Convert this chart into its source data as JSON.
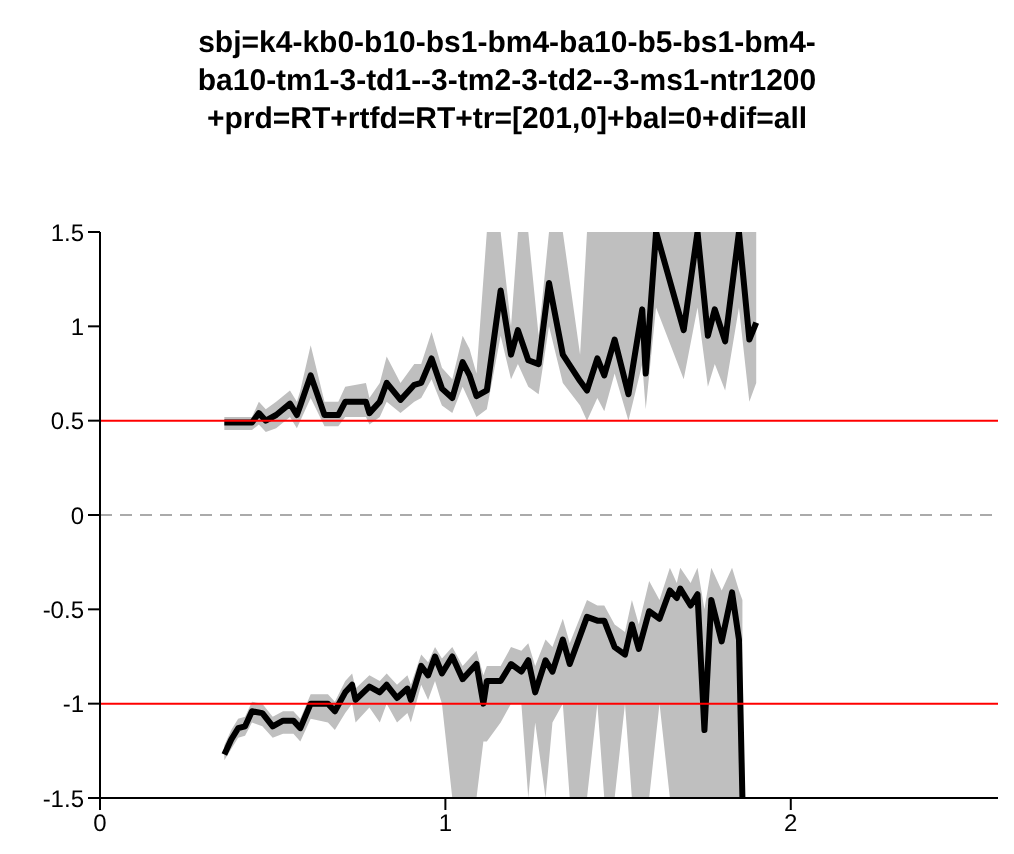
{
  "chart_data": {
    "type": "line",
    "title": "sbj=k4-kb0-b10-bs1-bm4-ba10-b5-bs1-bm4-ba10-tm1-3-td1--3-tm2-3-td2--3-ms1-ntr1200+prd=RT+rtfd=RT+tr=[201,0]+bal=0+dif=all",
    "xlim": [
      0,
      2.6
    ],
    "xticks": [
      0,
      1,
      2
    ],
    "ylim": [
      -1.5,
      1.5
    ],
    "yticks": [
      -1.5,
      -1,
      -0.5,
      0,
      0.5,
      1,
      1.5
    ],
    "grid": false,
    "line_style": "solid",
    "ref_lines": [
      {
        "axis": "y",
        "value": 0.5,
        "color": "#ff0000"
      },
      {
        "axis": "y",
        "value": 0,
        "color": "#aaaaaa",
        "line_style": "dashed"
      },
      {
        "axis": "y",
        "value": -1,
        "color": "#ff0000"
      }
    ],
    "series": [
      {
        "color": "#000000",
        "x": [
          0.36,
          0.44,
          0.46,
          0.48,
          0.51,
          0.55,
          0.57,
          0.58,
          0.61,
          0.65,
          0.69,
          0.71,
          0.77,
          0.78,
          0.81,
          0.83,
          0.87,
          0.91,
          0.93,
          0.96,
          0.99,
          1.02,
          1.05,
          1.07,
          1.09,
          1.12,
          1.16,
          1.19,
          1.21,
          1.24,
          1.27,
          1.3,
          1.34,
          1.39,
          1.41,
          1.44,
          1.46,
          1.49,
          1.53,
          1.57,
          1.58,
          1.61,
          1.69,
          1.73,
          1.76,
          1.78,
          1.81,
          1.85,
          1.88,
          1.9
        ],
        "values": [
          0.49,
          0.49,
          0.54,
          0.5,
          0.53,
          0.59,
          0.53,
          0.58,
          0.74,
          0.53,
          0.53,
          0.6,
          0.6,
          0.54,
          0.6,
          0.7,
          0.61,
          0.69,
          0.7,
          0.83,
          0.67,
          0.62,
          0.81,
          0.74,
          0.63,
          0.66,
          1.19,
          0.85,
          0.98,
          0.82,
          0.8,
          1.23,
          0.85,
          0.71,
          0.66,
          0.83,
          0.74,
          0.93,
          0.64,
          1.09,
          0.75,
          1.5,
          0.98,
          1.5,
          0.95,
          1.09,
          0.92,
          1.5,
          0.93,
          1.02
        ],
        "lower": [
          0.45,
          0.45,
          0.48,
          0.44,
          0.46,
          0.52,
          0.46,
          0.5,
          0.62,
          0.47,
          0.47,
          0.52,
          0.52,
          0.48,
          0.52,
          0.6,
          0.54,
          0.6,
          0.62,
          0.72,
          0.58,
          0.54,
          0.68,
          0.6,
          0.52,
          0.56,
          0.95,
          0.72,
          0.8,
          0.68,
          0.64,
          1.0,
          0.7,
          0.58,
          0.5,
          0.62,
          0.55,
          0.75,
          0.5,
          0.8,
          0.56,
          1.1,
          0.72,
          1.1,
          0.68,
          0.8,
          0.66,
          1.1,
          0.6,
          0.7
        ],
        "upper": [
          0.52,
          0.52,
          0.6,
          0.56,
          0.6,
          0.66,
          0.6,
          0.66,
          0.9,
          0.6,
          0.6,
          0.68,
          0.7,
          0.62,
          0.7,
          0.84,
          0.7,
          0.8,
          0.8,
          0.97,
          0.78,
          0.72,
          0.95,
          0.88,
          0.75,
          1.5,
          1.5,
          1.0,
          1.5,
          1.5,
          0.95,
          1.5,
          1.5,
          0.85,
          1.5,
          1.5,
          1.5,
          1.5,
          1.5,
          1.5,
          1.5,
          1.5,
          1.5,
          1.5,
          1.5,
          1.5,
          1.5,
          1.5,
          1.5,
          1.5
        ]
      },
      {
        "color": "#000000",
        "x": [
          0.36,
          0.38,
          0.4,
          0.42,
          0.44,
          0.47,
          0.5,
          0.53,
          0.56,
          0.58,
          0.61,
          0.66,
          0.68,
          0.71,
          0.73,
          0.74,
          0.78,
          0.81,
          0.83,
          0.86,
          0.89,
          0.9,
          0.93,
          0.95,
          0.97,
          0.99,
          1.02,
          1.05,
          1.09,
          1.11,
          1.12,
          1.16,
          1.19,
          1.22,
          1.24,
          1.26,
          1.29,
          1.31,
          1.34,
          1.36,
          1.41,
          1.44,
          1.46,
          1.49,
          1.52,
          1.54,
          1.56,
          1.59,
          1.62,
          1.65,
          1.67,
          1.68,
          1.71,
          1.73,
          1.75,
          1.77,
          1.8,
          1.83,
          1.85,
          1.86
        ],
        "values": [
          -1.27,
          -1.19,
          -1.13,
          -1.12,
          -1.04,
          -1.05,
          -1.12,
          -1.09,
          -1.09,
          -1.13,
          -1.0,
          -1.0,
          -1.04,
          -0.94,
          -0.9,
          -0.98,
          -0.91,
          -0.94,
          -0.9,
          -0.97,
          -0.92,
          -0.98,
          -0.8,
          -0.85,
          -0.75,
          -0.84,
          -0.75,
          -0.87,
          -0.79,
          -1.0,
          -0.88,
          -0.88,
          -0.79,
          -0.83,
          -0.77,
          -0.94,
          -0.77,
          -0.83,
          -0.66,
          -0.79,
          -0.54,
          -0.56,
          -0.56,
          -0.7,
          -0.74,
          -0.58,
          -0.71,
          -0.51,
          -0.55,
          -0.4,
          -0.44,
          -0.39,
          -0.48,
          -0.42,
          -1.14,
          -0.45,
          -0.67,
          -0.41,
          -0.66,
          -1.5
        ],
        "lower": [
          -1.3,
          -1.24,
          -1.18,
          -1.17,
          -1.1,
          -1.12,
          -1.18,
          -1.16,
          -1.16,
          -1.2,
          -1.08,
          -1.1,
          -1.14,
          -1.05,
          -1.0,
          -1.1,
          -1.02,
          -1.1,
          -1.0,
          -1.1,
          -1.05,
          -1.1,
          -0.9,
          -0.98,
          -0.88,
          -1.0,
          -1.5,
          -1.5,
          -1.5,
          -1.2,
          -1.2,
          -1.1,
          -1.0,
          -1.0,
          -1.5,
          -1.1,
          -1.5,
          -1.1,
          -1.0,
          -1.5,
          -1.5,
          -1.0,
          -1.5,
          -1.5,
          -1.0,
          -1.5,
          -1.5,
          -1.5,
          -1.0,
          -1.5,
          -1.5,
          -1.5,
          -1.5,
          -1.5,
          -1.5,
          -1.5,
          -1.5,
          -1.5,
          -1.5,
          -1.5
        ],
        "upper": [
          -1.22,
          -1.14,
          -1.08,
          -1.07,
          -0.99,
          -1.0,
          -1.07,
          -1.04,
          -1.04,
          -1.08,
          -0.95,
          -0.95,
          -0.99,
          -0.88,
          -0.84,
          -0.92,
          -0.85,
          -0.88,
          -0.84,
          -0.9,
          -0.85,
          -0.9,
          -0.74,
          -0.78,
          -0.7,
          -0.76,
          -0.7,
          -0.8,
          -0.72,
          -0.85,
          -0.8,
          -0.8,
          -0.7,
          -0.72,
          -0.68,
          -0.8,
          -0.66,
          -0.7,
          -0.55,
          -0.68,
          -0.45,
          -0.48,
          -0.48,
          -0.58,
          -0.62,
          -0.45,
          -0.58,
          -0.35,
          -0.45,
          -0.28,
          -0.36,
          -0.28,
          -0.36,
          -0.28,
          -0.5,
          -0.28,
          -0.4,
          -0.28,
          -0.4,
          -0.45
        ]
      }
    ]
  }
}
